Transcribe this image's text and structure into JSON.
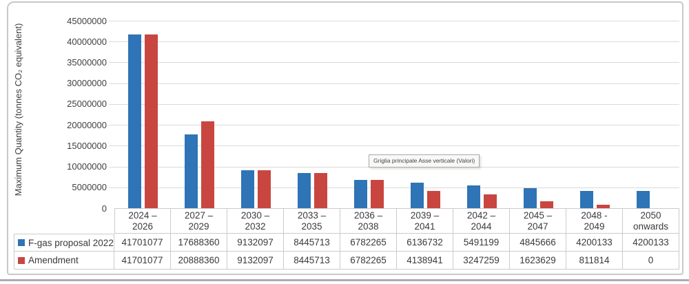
{
  "chart_data": {
    "type": "bar",
    "title": "",
    "xlabel": "",
    "ylabel": "Maximum Quantity (tonnes CO₂ equivalent)",
    "ylim": [
      0,
      45000000
    ],
    "y_ticks": [
      0,
      5000000,
      10000000,
      15000000,
      20000000,
      25000000,
      30000000,
      35000000,
      40000000,
      45000000
    ],
    "grid": "horizontal",
    "legend_position": "data-table-left",
    "categories": [
      "2024 –\n2026",
      "2027 –\n2029",
      "2030 –\n2032",
      "2033 –\n2035",
      "2036 –\n2038",
      "2039 –\n2041",
      "2042 –\n2044",
      "2045 –\n2047",
      "2048 -\n2049",
      "2050\nonwards"
    ],
    "series": [
      {
        "name": "F-gas proposal 2022",
        "color": "#2e74b6",
        "values": [
          41701077,
          17688360,
          9132097,
          8445713,
          6782265,
          6136732,
          5491199,
          4845666,
          4200133,
          4200133
        ]
      },
      {
        "name": "Amendment",
        "color": "#c8463f",
        "values": [
          41701077,
          20888360,
          9132097,
          8445713,
          6782265,
          4138941,
          3247259,
          1623629,
          811814,
          0
        ]
      }
    ]
  },
  "tooltip": {
    "text": "Griglia principale Asse verticale (Valori)"
  },
  "colors": {
    "gridline": "#dadada",
    "table_border": "#cbcbcb",
    "frame_border": "#c7c7cd",
    "text": "#3f3f3f"
  }
}
